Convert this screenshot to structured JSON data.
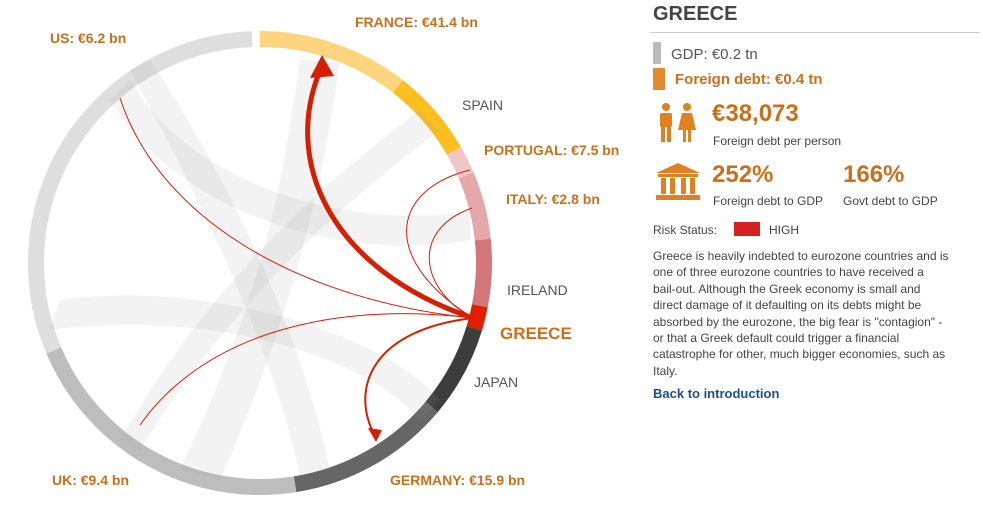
{
  "diagram": {
    "labels": {
      "france": "FRANCE: €41.4 bn",
      "us": "US: €6.2 bn",
      "spain": "SPAIN",
      "portugal": "PORTUGAL: €7.5 bn",
      "italy": "ITALY: €2.8 bn",
      "ireland": "IRELAND",
      "greece": "GREECE",
      "japan": "JAPAN",
      "germany": "GERMANY: €15.9 bn",
      "uk": "UK: €9.4 bn"
    }
  },
  "panel": {
    "title": "GREECE",
    "gdp": "GDP: €0.2 tn",
    "foreign_debt": "Foreign debt: €0.4 tn",
    "per_person_value": "€38,073",
    "per_person_label": "Foreign debt per person",
    "foreign_gdp_value": "252%",
    "foreign_gdp_label": "Foreign debt to GDP",
    "govt_gdp_value": "166%",
    "govt_gdp_label": "Govt debt to GDP",
    "risk_label": "Risk Status:",
    "risk_value": "HIGH",
    "description": [
      "Greece is heavily indebted to eurozone countries and is",
      "one of three eurozone countries to have received a",
      "bail-out. Although the Greek economy is small and",
      "direct damage of it defaulting on its debts might be",
      "absorbed by the eurozone, the big fear is \"contagion\" -",
      "or that a Greek default could trigger a financial",
      "catastrophe for other, much bigger economies, such as",
      "Italy."
    ],
    "back_link": "Back to introduction"
  }
}
